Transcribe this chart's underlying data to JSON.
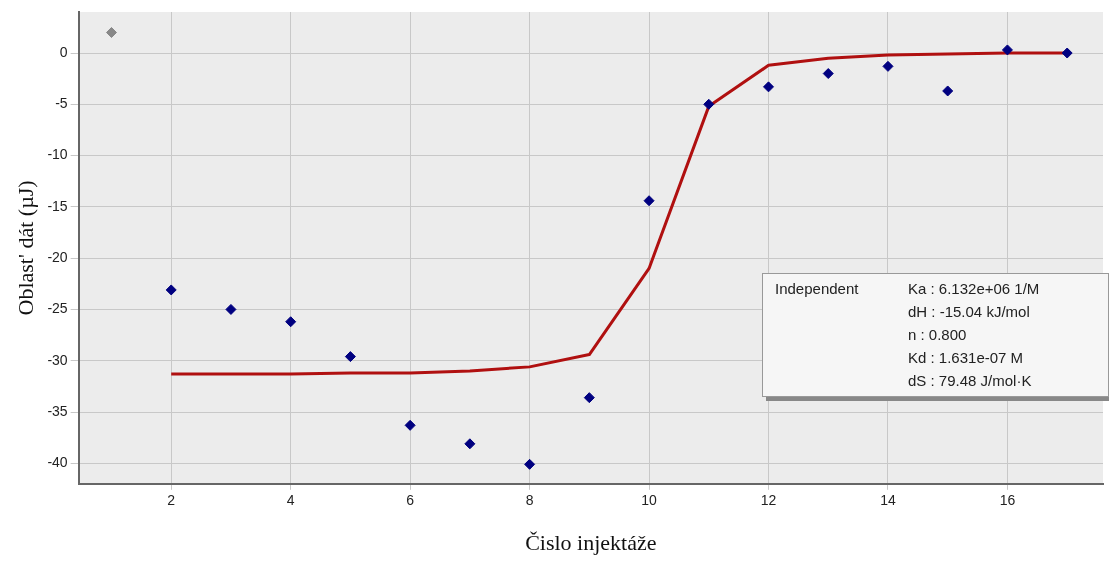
{
  "chart_data": {
    "type": "scatter",
    "xlabel": "Čislo injektáže",
    "ylabel": "Oblast' dát (µJ)",
    "xlim": [
      0.45,
      17.6
    ],
    "xticks": [
      2,
      4,
      6,
      8,
      10,
      12,
      14,
      16
    ],
    "ylim": [
      -42,
      4
    ],
    "yticks": [
      -40,
      -35,
      -30,
      -25,
      -20,
      -15,
      -10,
      -5,
      0
    ],
    "grid": true,
    "legend": false,
    "marker": "diamond",
    "series": [
      {
        "color": "#888888",
        "x": [
          1
        ],
        "values": [
          2
        ]
      },
      {
        "color": "#000080",
        "x": [
          2,
          3,
          4,
          5,
          6,
          7,
          8,
          9,
          10,
          11,
          12,
          13,
          14,
          15,
          16,
          17
        ],
        "values": [
          -23.1,
          -25,
          -26.2,
          -29.6,
          -36.3,
          -38.1,
          -40.1,
          -33.6,
          -14.4,
          -5,
          -3.3,
          -2,
          -1.3,
          -3.7,
          0.3,
          0
        ]
      },
      {
        "type": "line",
        "color": "#b01010",
        "marker": "none",
        "x": [
          2,
          3,
          4,
          5,
          6,
          7,
          8,
          9,
          10,
          11,
          12,
          13,
          14,
          15,
          16,
          17
        ],
        "values": [
          -31.3,
          -31.3,
          -31.3,
          -31.2,
          -31.2,
          -31,
          -30.6,
          -29.4,
          -21,
          -5.2,
          -1.2,
          -0.5,
          -0.2,
          -0.1,
          0,
          0
        ]
      }
    ],
    "annotations": [
      "Independent",
      "Ka : 6.132e+06 1/M",
      "dH : -15.04 kJ/mol",
      "n : 0.800",
      "Kd : 1.631e-07 M",
      "dS : 79.48 J/mol·K"
    ]
  }
}
